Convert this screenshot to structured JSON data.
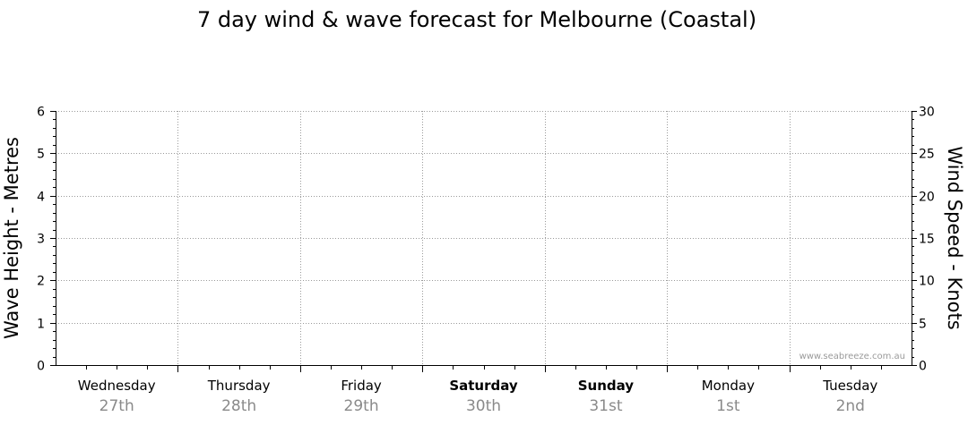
{
  "title": "7 day wind & wave forecast for Melbourne (Coastal)",
  "watermark": "www.seabreeze.com.au",
  "colors": {
    "grid": "#9a9a9a",
    "axis": "#000000",
    "date": "#8a8a8a"
  },
  "chart_data": {
    "type": "line",
    "ylabel_left": "Wave Height - Metres",
    "ylabel_right": "Wind Speed - Knots",
    "ylim_left": [
      0,
      6
    ],
    "ylim_right": [
      0,
      30
    ],
    "yticks_left": [
      "0",
      "1",
      "2",
      "3",
      "4",
      "5",
      "6"
    ],
    "yticks_right": [
      "0",
      "5",
      "10",
      "15",
      "20",
      "25",
      "30"
    ],
    "grid": true,
    "days": [
      {
        "name": "Wednesday",
        "date": "27th",
        "bold": false
      },
      {
        "name": "Thursday",
        "date": "28th",
        "bold": false
      },
      {
        "name": "Friday",
        "date": "29th",
        "bold": false
      },
      {
        "name": "Saturday",
        "date": "30th",
        "bold": true
      },
      {
        "name": "Sunday",
        "date": "31st",
        "bold": true
      },
      {
        "name": "Monday",
        "date": "1st",
        "bold": false
      },
      {
        "name": "Tuesday",
        "date": "2nd",
        "bold": false
      }
    ],
    "series": []
  }
}
